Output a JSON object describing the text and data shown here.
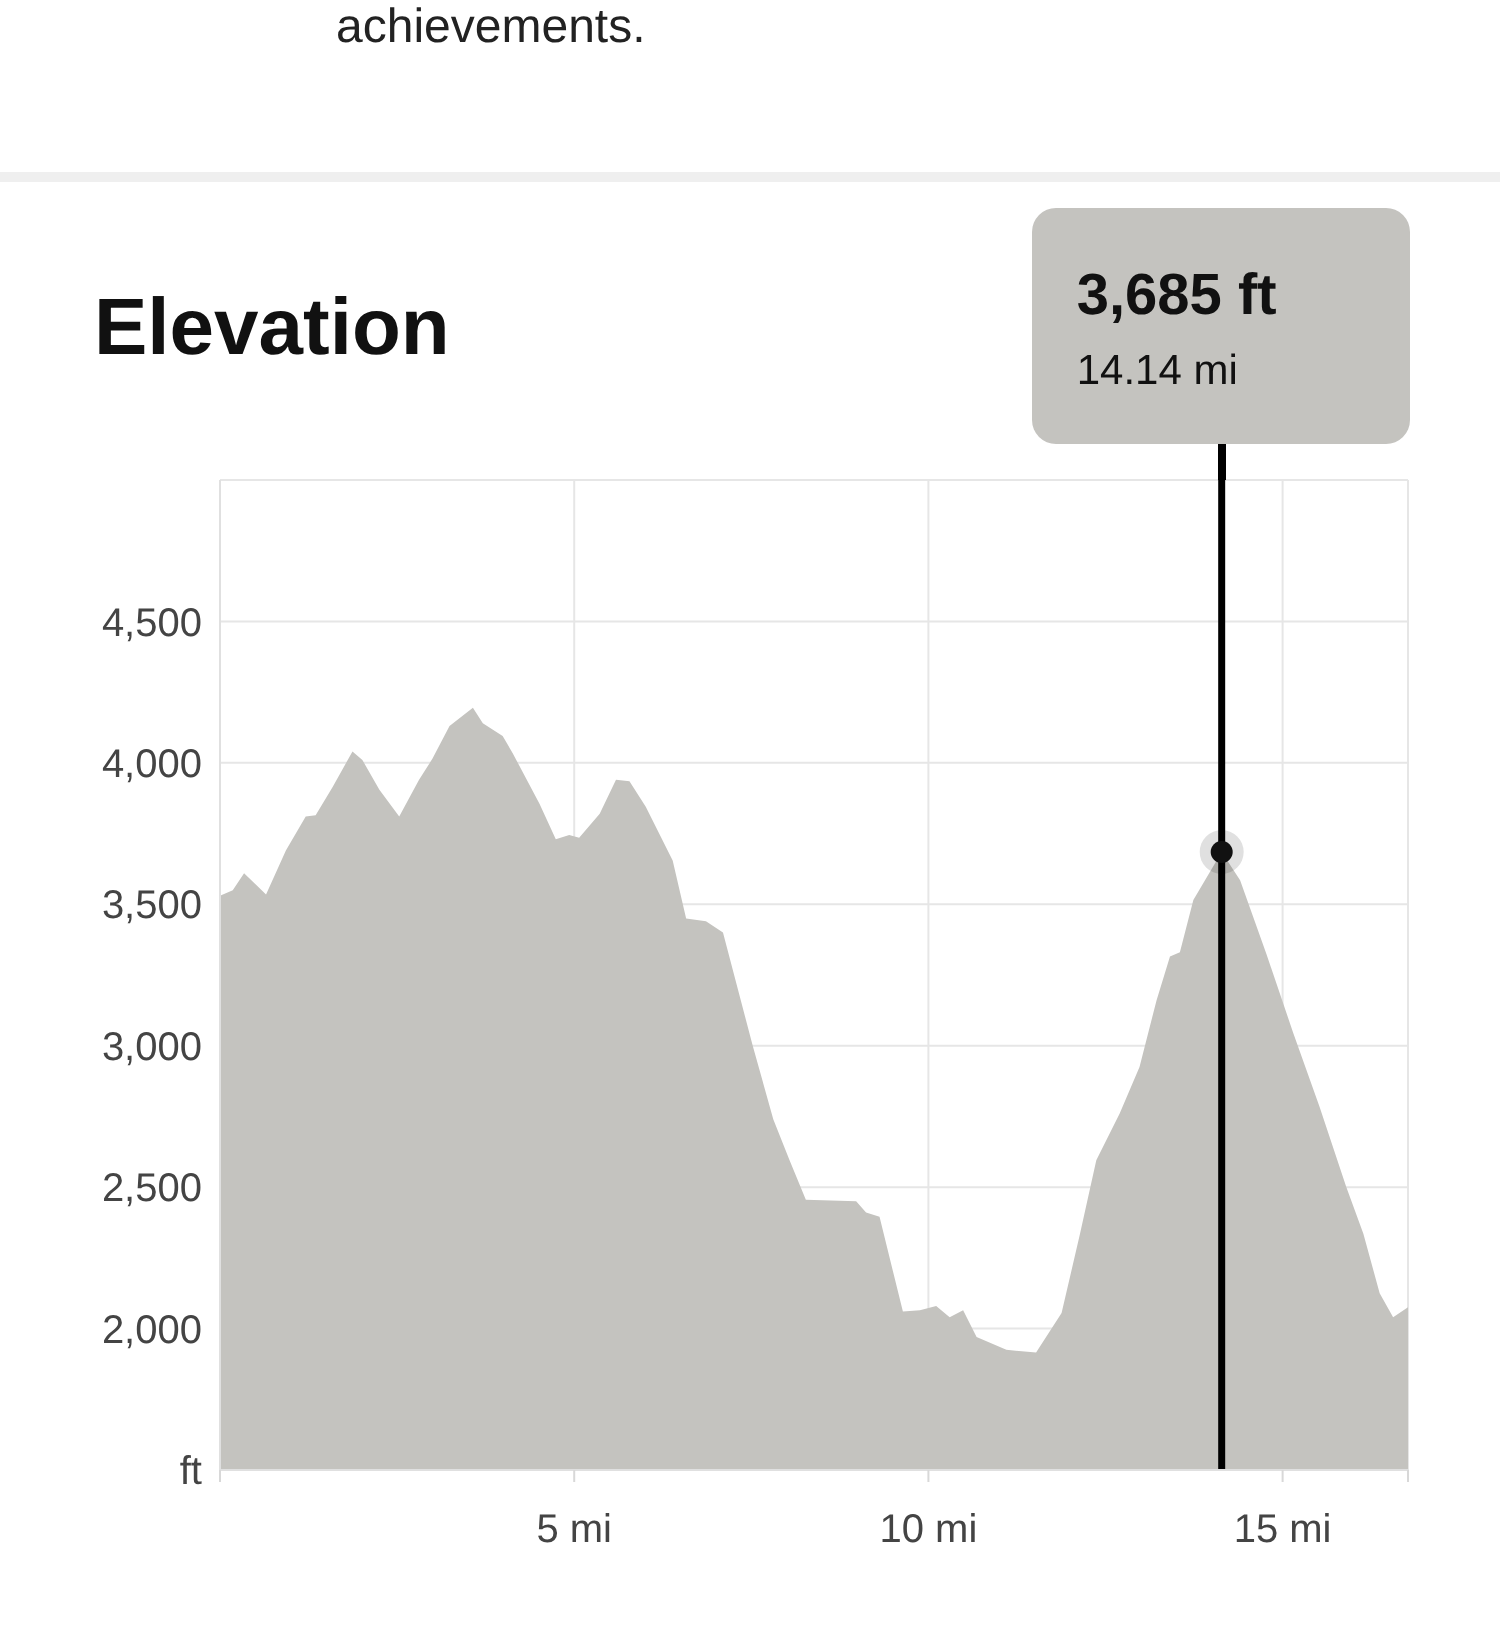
{
  "chart_data": {
    "type": "area",
    "title": "Elevation",
    "x": [
      0,
      0.18,
      0.34,
      0.65,
      0.93,
      1.21,
      1.35,
      1.59,
      1.87,
      2.01,
      2.25,
      2.53,
      2.81,
      3.0,
      3.24,
      3.57,
      3.71,
      3.99,
      4.13,
      4.51,
      4.74,
      4.93,
      5.07,
      5.36,
      5.59,
      5.78,
      6.01,
      6.39,
      6.58,
      6.86,
      7.1,
      7.52,
      7.81,
      8.04,
      8.27,
      8.98,
      9.12,
      9.31,
      9.64,
      9.88,
      10.11,
      10.3,
      10.49,
      10.68,
      11.1,
      11.52,
      11.88,
      12.14,
      12.37,
      12.7,
      12.98,
      13.22,
      13.41,
      13.55,
      13.74,
      14.14,
      14.4,
      14.77,
      15.15,
      15.52,
      15.9,
      16.14,
      16.37,
      16.56,
      16.77
    ],
    "series": [
      {
        "color": "#c4c3bf",
        "values": [
          3530,
          3550,
          3610,
          3535,
          3690,
          3810,
          3815,
          3915,
          4040,
          4010,
          3905,
          3810,
          3940,
          4015,
          4130,
          4195,
          4140,
          4095,
          4035,
          3855,
          3730,
          3745,
          3735,
          3820,
          3940,
          3935,
          3845,
          3655,
          3450,
          3440,
          3400,
          3000,
          2740,
          2595,
          2455,
          2450,
          2410,
          2395,
          2060,
          2065,
          2080,
          2040,
          2065,
          1970,
          1925,
          1915,
          2055,
          2335,
          2595,
          2760,
          2925,
          3160,
          3315,
          3330,
          3515,
          3685,
          3585,
          3325,
          3045,
          2785,
          2500,
          2335,
          2125,
          2040,
          2075
        ]
      },
      {
        "type": "scatter",
        "x": [
          14.14
        ],
        "values": [
          3685
        ],
        "color": "#111111",
        "marker": "circle"
      }
    ],
    "xlim": [
      0,
      16.77
    ],
    "xticks": [
      {
        "value": 0,
        "label": null
      },
      {
        "value": 5,
        "label": "5 mi"
      },
      {
        "value": 10,
        "label": "10 mi"
      },
      {
        "value": 15,
        "label": "15 mi"
      },
      {
        "value": 16.77,
        "label": null
      }
    ],
    "ylim": [
      1500,
      5000
    ],
    "yticks": [
      {
        "value": 1500,
        "label": "ft"
      },
      {
        "value": 2000,
        "label": "2,000"
      },
      {
        "value": 2500,
        "label": "2,500"
      },
      {
        "value": 3000,
        "label": "3,000"
      },
      {
        "value": 3500,
        "label": "3,500"
      },
      {
        "value": 4000,
        "label": "4,000"
      },
      {
        "value": 4500,
        "label": "4,500"
      },
      {
        "value": 5000,
        "label": null
      }
    ],
    "grid": true,
    "ref_lines": [
      {
        "axis": "x",
        "value": 14.14,
        "color": "#000000"
      }
    ],
    "annotations": [
      "achievements.",
      "3,685 ft",
      "14.14 mi"
    ]
  }
}
